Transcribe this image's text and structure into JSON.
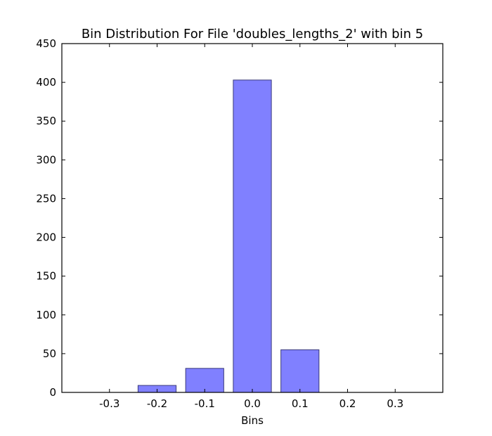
{
  "chart_data": {
    "type": "bar",
    "title": "Bin Distribution For File 'doubles_lengths_2' with bin 5",
    "xlabel": "Bins",
    "ylabel": "",
    "categories": [
      "-0.3",
      "-0.2",
      "-0.1",
      "0.0",
      "0.1",
      "0.2",
      "0.3"
    ],
    "bar_centers": [
      -0.3,
      -0.2,
      -0.1,
      0.0,
      0.1,
      0.2,
      0.3
    ],
    "values": [
      0,
      9,
      31,
      403,
      55,
      0,
      0
    ],
    "bar_width": 0.08,
    "xlim": [
      -0.4,
      0.4
    ],
    "ylim": [
      0,
      450
    ],
    "xticks": [
      -0.3,
      -0.2,
      -0.1,
      0.0,
      0.1,
      0.2,
      0.3
    ],
    "xtick_labels": [
      "-0.3",
      "-0.2",
      "-0.1",
      "0.0",
      "0.1",
      "0.2",
      "0.3"
    ],
    "yticks": [
      0,
      50,
      100,
      150,
      200,
      250,
      300,
      350,
      400,
      450
    ],
    "ytick_labels": [
      "0",
      "50",
      "100",
      "150",
      "200",
      "250",
      "300",
      "350",
      "400",
      "450"
    ],
    "bar_color": "#8080ff",
    "bar_edge_color": "#3a3a7a",
    "grid": false,
    "legend": false
  }
}
